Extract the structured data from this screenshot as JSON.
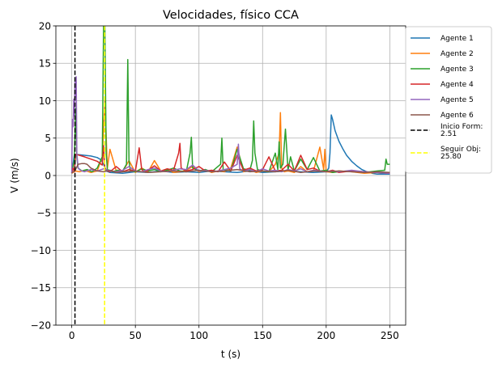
{
  "chart_data": {
    "type": "line",
    "title": "Velocidades, físico CCA",
    "xlabel": "t (s)",
    "ylabel": "V (m/s)",
    "xlim": [
      -12.5,
      262.5
    ],
    "ylim": [
      -20,
      20
    ],
    "x_ticks": [
      0,
      50,
      100,
      150,
      200,
      250
    ],
    "y_ticks": [
      -20,
      -15,
      -10,
      -5,
      0,
      5,
      10,
      15,
      20
    ],
    "grid": true,
    "legend_position": "outside-right",
    "series": [
      {
        "name": "Agente 1",
        "color": "#1f77b4",
        "x": [
          0,
          1,
          2,
          3,
          5,
          10,
          15,
          20,
          23,
          25,
          27,
          30,
          40,
          50,
          60,
          70,
          80,
          90,
          100,
          110,
          120,
          130,
          140,
          150,
          160,
          170,
          180,
          190,
          200,
          202,
          203,
          204,
          205,
          207,
          210,
          213,
          216,
          220,
          224,
          228,
          232,
          236,
          240,
          245,
          250
        ],
        "y": [
          0.3,
          1.5,
          2.8,
          2.8,
          2.8,
          2.7,
          2.6,
          2.4,
          2.1,
          1.5,
          0.6,
          0.4,
          0.3,
          0.5,
          0.4,
          0.6,
          0.4,
          0.5,
          0.4,
          0.6,
          0.5,
          0.4,
          0.6,
          0.4,
          0.5,
          0.6,
          0.5,
          0.4,
          0.5,
          1.0,
          3.0,
          8.1,
          7.5,
          6.0,
          4.6,
          3.6,
          2.7,
          1.9,
          1.3,
          0.8,
          0.5,
          0.3,
          0.2,
          0.2,
          0.2
        ]
      },
      {
        "name": "Agente 2",
        "color": "#ff7f0e",
        "x": [
          0,
          3,
          6,
          10,
          15,
          20,
          24,
          26,
          28,
          30,
          35,
          40,
          45,
          50,
          55,
          60,
          65,
          70,
          75,
          80,
          85,
          90,
          95,
          100,
          105,
          110,
          115,
          120,
          125,
          130,
          135,
          140,
          145,
          150,
          155,
          160,
          163,
          164,
          165,
          167,
          170,
          175,
          180,
          185,
          190,
          195,
          198,
          199,
          200,
          205,
          210,
          220,
          230,
          240,
          250
        ],
        "y": [
          0.3,
          0.6,
          0.5,
          0.7,
          0.4,
          0.6,
          2.5,
          10.0,
          1.0,
          3.5,
          0.6,
          0.5,
          2.0,
          0.4,
          1.0,
          0.5,
          2.0,
          0.6,
          0.8,
          0.4,
          0.5,
          0.7,
          1.2,
          0.5,
          0.8,
          0.4,
          0.6,
          0.5,
          1.0,
          3.8,
          0.5,
          0.8,
          0.4,
          0.6,
          0.5,
          1.5,
          3.0,
          8.4,
          1.0,
          0.5,
          0.6,
          0.4,
          1.2,
          0.5,
          0.6,
          3.8,
          0.8,
          3.5,
          0.5,
          0.4,
          0.6,
          0.5,
          0.3,
          0.4,
          0.3
        ]
      },
      {
        "name": "Agente 3",
        "color": "#2ca02c",
        "x": [
          0,
          2,
          3,
          4,
          5,
          8,
          12,
          16,
          20,
          24,
          25,
          26,
          27,
          28,
          32,
          36,
          40,
          43,
          44,
          45,
          46,
          50,
          55,
          60,
          65,
          70,
          75,
          80,
          85,
          90,
          93,
          94,
          95,
          100,
          105,
          110,
          117,
          118,
          119,
          125,
          130,
          135,
          140,
          142,
          143,
          144,
          146,
          150,
          155,
          160,
          162,
          163,
          164,
          166,
          168,
          170,
          172,
          175,
          180,
          185,
          190,
          195,
          200,
          205,
          210,
          220,
          230,
          240,
          246,
          247,
          248,
          250
        ],
        "y": [
          0.4,
          2.0,
          9.0,
          2.5,
          1.0,
          0.6,
          0.8,
          0.5,
          1.0,
          2.5,
          20.0,
          20.0,
          3.0,
          0.8,
          0.5,
          0.7,
          0.6,
          1.5,
          15.5,
          2.0,
          0.6,
          0.5,
          0.9,
          0.6,
          0.8,
          0.5,
          0.7,
          1.0,
          0.6,
          0.5,
          3.0,
          5.1,
          1.0,
          0.6,
          0.8,
          0.5,
          1.5,
          5.0,
          0.8,
          0.6,
          3.5,
          0.9,
          0.7,
          2.0,
          7.3,
          3.0,
          0.8,
          0.6,
          0.5,
          3.0,
          0.8,
          4.5,
          1.0,
          1.5,
          6.2,
          0.7,
          2.5,
          0.6,
          2.2,
          0.8,
          2.4,
          0.6,
          0.7,
          0.4,
          0.5,
          0.6,
          0.4,
          0.6,
          0.7,
          2.2,
          1.5,
          1.5
        ]
      },
      {
        "name": "Agente 4",
        "color": "#d62728",
        "x": [
          0,
          1,
          2,
          3,
          4,
          6,
          10,
          15,
          20,
          24,
          25,
          26,
          28,
          30,
          35,
          40,
          45,
          50,
          53,
          55,
          57,
          60,
          65,
          70,
          75,
          80,
          84,
          85,
          86,
          90,
          95,
          100,
          105,
          110,
          115,
          120,
          125,
          130,
          135,
          140,
          145,
          150,
          155,
          160,
          165,
          170,
          175,
          180,
          185,
          190,
          195,
          200,
          205,
          210,
          220,
          230,
          240,
          250
        ],
        "y": [
          0.4,
          1.0,
          0.5,
          2.8,
          2.8,
          2.7,
          2.5,
          2.2,
          1.9,
          1.4,
          4.0,
          1.0,
          0.6,
          0.5,
          1.2,
          0.5,
          0.8,
          0.6,
          3.7,
          0.8,
          0.5,
          0.7,
          1.3,
          0.6,
          0.9,
          0.7,
          3.0,
          4.3,
          1.0,
          0.6,
          0.8,
          1.2,
          0.6,
          0.7,
          0.5,
          1.8,
          0.6,
          2.7,
          0.7,
          1.0,
          0.6,
          0.8,
          2.5,
          0.6,
          0.7,
          1.5,
          0.6,
          2.7,
          0.8,
          1.0,
          0.6,
          0.5,
          0.7,
          0.4,
          0.6,
          0.5,
          0.4,
          0.3
        ]
      },
      {
        "name": "Agente 5",
        "color": "#9467bd",
        "x": [
          0,
          0.5,
          1,
          1.5,
          2,
          2.5,
          3,
          3.5,
          4,
          5,
          6,
          8,
          10,
          15,
          20,
          25,
          30,
          35,
          40,
          45,
          50,
          55,
          60,
          65,
          70,
          75,
          80,
          85,
          90,
          95,
          100,
          105,
          110,
          115,
          120,
          125,
          130,
          131,
          132,
          135,
          140,
          145,
          150,
          155,
          160,
          165,
          170,
          175,
          180,
          185,
          190,
          195,
          200,
          205,
          210,
          220,
          230,
          240,
          250
        ],
        "y": [
          0.3,
          7.5,
          6.5,
          10.2,
          8.0,
          12.6,
          10.5,
          13.2,
          3.0,
          1.0,
          0.8,
          0.6,
          0.5,
          0.8,
          0.6,
          0.9,
          0.6,
          0.5,
          0.7,
          1.2,
          0.6,
          0.5,
          0.8,
          1.0,
          0.6,
          0.5,
          0.7,
          0.9,
          0.8,
          1.4,
          0.6,
          0.7,
          0.5,
          0.6,
          0.8,
          1.0,
          1.5,
          4.2,
          0.9,
          0.6,
          0.8,
          0.5,
          0.9,
          0.6,
          0.7,
          0.5,
          0.8,
          0.6,
          0.9,
          0.5,
          0.7,
          0.6,
          0.5,
          0.6,
          0.5,
          0.7,
          0.5,
          0.4,
          0.3
        ]
      },
      {
        "name": "Agente 6",
        "color": "#8c564b",
        "x": [
          0,
          1,
          2,
          3,
          5,
          8,
          10,
          12,
          15,
          20,
          25,
          30,
          35,
          40,
          50,
          60,
          70,
          80,
          90,
          100,
          110,
          120,
          130,
          140,
          150,
          160,
          170,
          180,
          190,
          200,
          210,
          220,
          230,
          240,
          250
        ],
        "y": [
          0.3,
          0.5,
          0.6,
          0.8,
          1.5,
          1.6,
          1.6,
          1.5,
          1.0,
          0.6,
          0.5,
          0.7,
          0.4,
          0.5,
          0.6,
          0.4,
          0.5,
          0.6,
          0.5,
          0.7,
          0.5,
          0.6,
          0.8,
          0.5,
          0.6,
          0.5,
          0.7,
          0.4,
          0.6,
          0.5,
          0.6,
          0.5,
          0.4,
          0.5,
          0.4
        ]
      }
    ],
    "vlines": [
      {
        "name": "Inicio Form:\n2.51",
        "x": 2.51,
        "color": "#000000",
        "style": "dashed"
      },
      {
        "name": "Seguir Obj:\n25.80",
        "x": 25.8,
        "color": "#ffff00",
        "style": "dashed"
      }
    ]
  }
}
